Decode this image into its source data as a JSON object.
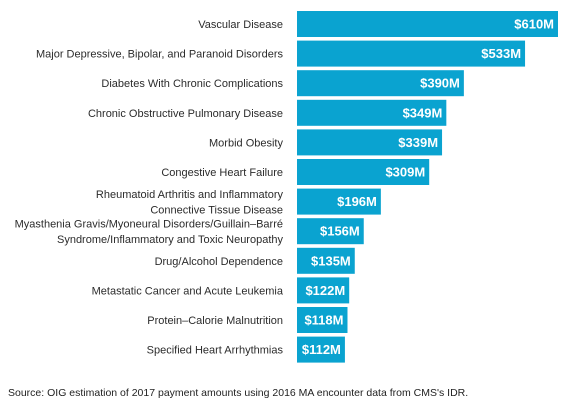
{
  "source_note": "Source: OIG estimation of 2017 payment amounts using 2016 MA encounter data from CMS's IDR.",
  "colors": {
    "bar": "#0aa3d0",
    "value_text": "#ffffff",
    "label_text": "#2b2b2b"
  },
  "chart_data": {
    "type": "bar",
    "orientation": "horizontal",
    "categories": [
      [
        "Vascular Disease"
      ],
      [
        "Major Depressive, Bipolar, and Paranoid Disorders"
      ],
      [
        "Diabetes With Chronic Complications"
      ],
      [
        "Chronic Obstructive Pulmonary Disease"
      ],
      [
        "Morbid Obesity"
      ],
      [
        "Congestive Heart Failure"
      ],
      [
        "Rheumatoid Arthritis and  Inflammatory",
        "Connective Tissue Disease"
      ],
      [
        "Myasthenia Gravis/Myoneural Disorders/Guillain–Barré",
        "Syndrome/Inflammatory  and Toxic Neuropathy"
      ],
      [
        "Drug/Alcohol Dependence"
      ],
      [
        "Metastatic Cancer and Acute Leukemia"
      ],
      [
        "Protein–Calorie Malnutrition"
      ],
      [
        "Specified Heart Arrhythmias"
      ]
    ],
    "values": [
      610,
      533,
      390,
      349,
      339,
      309,
      196,
      156,
      135,
      122,
      118,
      112
    ],
    "value_labels": [
      "$610M",
      "$533M",
      "$390M",
      "$349M",
      "$339M",
      "$309M",
      "$196M",
      "$156M",
      "$135M",
      "$122M",
      "$118M",
      "$112M"
    ],
    "unit": "millions of dollars",
    "xlim": [
      0,
      610
    ],
    "grid": false,
    "legend": "none"
  }
}
